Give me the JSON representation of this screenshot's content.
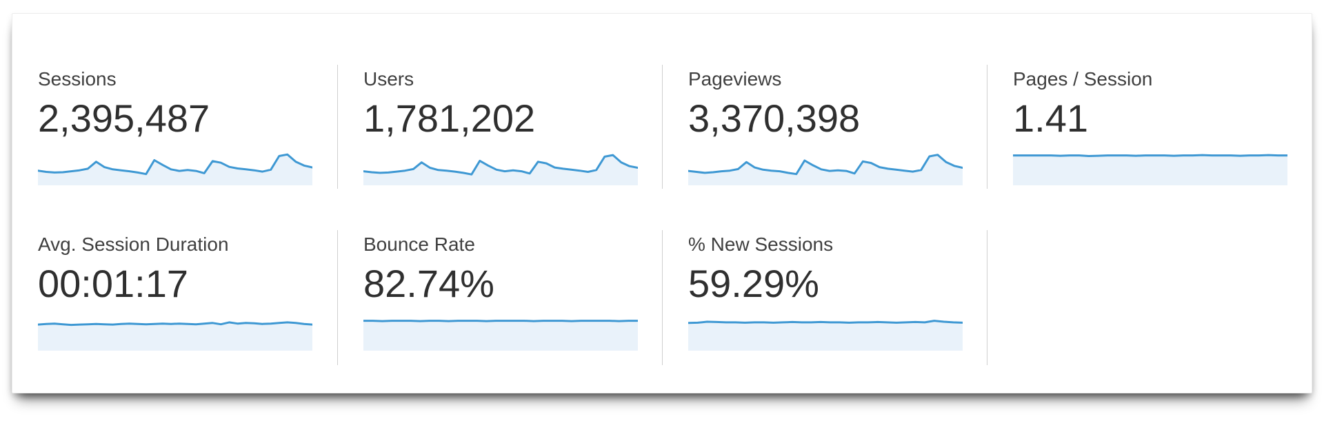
{
  "colors": {
    "spark_stroke": "#3e98d3",
    "spark_fill": "#e9f2fa",
    "divider": "#cfcfcf",
    "label_text": "#3f3f3f",
    "value_text": "#2f2f2f",
    "panel_background": "#ffffff"
  },
  "cards": [
    {
      "id": "sessions",
      "label": "Sessions",
      "value": "2,395,487"
    },
    {
      "id": "users",
      "label": "Users",
      "value": "1,781,202"
    },
    {
      "id": "pageviews",
      "label": "Pageviews",
      "value": "3,370,398"
    },
    {
      "id": "pages-per-session",
      "label": "Pages / Session",
      "value": "1.41"
    },
    {
      "id": "avg-session-duration",
      "label": "Avg. Session Duration",
      "value": "00:01:17"
    },
    {
      "id": "bounce-rate",
      "label": "Bounce Rate",
      "value": "82.74%"
    },
    {
      "id": "new-sessions",
      "label": "% New Sessions",
      "value": "59.29%"
    }
  ],
  "chart_data": [
    {
      "type": "area",
      "title": "Sessions",
      "value": "2,395,487",
      "values_normalized": [
        0.42,
        0.38,
        0.36,
        0.37,
        0.4,
        0.43,
        0.48,
        0.7,
        0.53,
        0.46,
        0.43,
        0.4,
        0.36,
        0.31,
        0.75,
        0.6,
        0.46,
        0.41,
        0.44,
        0.41,
        0.34,
        0.72,
        0.67,
        0.54,
        0.49,
        0.46,
        0.43,
        0.39,
        0.45,
        0.88,
        0.93,
        0.7,
        0.58,
        0.52
      ]
    },
    {
      "type": "area",
      "title": "Users",
      "value": "1,781,202",
      "values_normalized": [
        0.4,
        0.37,
        0.35,
        0.36,
        0.39,
        0.42,
        0.47,
        0.68,
        0.51,
        0.44,
        0.42,
        0.39,
        0.35,
        0.3,
        0.73,
        0.58,
        0.45,
        0.4,
        0.43,
        0.4,
        0.33,
        0.7,
        0.65,
        0.52,
        0.48,
        0.45,
        0.42,
        0.38,
        0.44,
        0.86,
        0.91,
        0.68,
        0.56,
        0.51
      ]
    },
    {
      "type": "area",
      "title": "Pageviews",
      "value": "3,370,398",
      "values_normalized": [
        0.41,
        0.38,
        0.35,
        0.37,
        0.4,
        0.42,
        0.47,
        0.69,
        0.52,
        0.45,
        0.42,
        0.4,
        0.35,
        0.31,
        0.74,
        0.59,
        0.46,
        0.41,
        0.43,
        0.41,
        0.33,
        0.71,
        0.66,
        0.53,
        0.48,
        0.45,
        0.42,
        0.39,
        0.44,
        0.87,
        0.92,
        0.69,
        0.57,
        0.51
      ]
    },
    {
      "type": "area",
      "title": "Pages / Session",
      "value": "1.41",
      "values_normalized": [
        0.9,
        0.9,
        0.9,
        0.9,
        0.9,
        0.89,
        0.9,
        0.9,
        0.88,
        0.89,
        0.9,
        0.9,
        0.9,
        0.89,
        0.9,
        0.9,
        0.9,
        0.89,
        0.9,
        0.9,
        0.91,
        0.9,
        0.9,
        0.9,
        0.89,
        0.9,
        0.9,
        0.91,
        0.9,
        0.9
      ]
    },
    {
      "type": "area",
      "title": "Avg. Session Duration",
      "value": "00:01:17",
      "values_normalized": [
        0.78,
        0.8,
        0.81,
        0.79,
        0.77,
        0.78,
        0.79,
        0.8,
        0.79,
        0.78,
        0.8,
        0.81,
        0.8,
        0.79,
        0.8,
        0.81,
        0.8,
        0.81,
        0.8,
        0.79,
        0.81,
        0.83,
        0.79,
        0.85,
        0.81,
        0.83,
        0.82,
        0.8,
        0.81,
        0.83,
        0.85,
        0.83,
        0.8,
        0.78
      ]
    },
    {
      "type": "area",
      "title": "Bounce Rate",
      "value": "82.74%",
      "values_normalized": [
        0.9,
        0.9,
        0.89,
        0.9,
        0.9,
        0.9,
        0.89,
        0.9,
        0.9,
        0.89,
        0.9,
        0.9,
        0.9,
        0.89,
        0.9,
        0.9,
        0.9,
        0.9,
        0.89,
        0.9,
        0.9,
        0.9,
        0.89,
        0.9,
        0.9,
        0.9,
        0.9,
        0.89,
        0.9,
        0.9
      ]
    },
    {
      "type": "area",
      "title": "% New Sessions",
      "value": "59.29%",
      "values_normalized": [
        0.83,
        0.84,
        0.87,
        0.86,
        0.85,
        0.85,
        0.84,
        0.85,
        0.85,
        0.84,
        0.85,
        0.86,
        0.85,
        0.85,
        0.86,
        0.85,
        0.85,
        0.84,
        0.85,
        0.85,
        0.86,
        0.85,
        0.84,
        0.85,
        0.86,
        0.85,
        0.9,
        0.87,
        0.85,
        0.84
      ]
    }
  ]
}
